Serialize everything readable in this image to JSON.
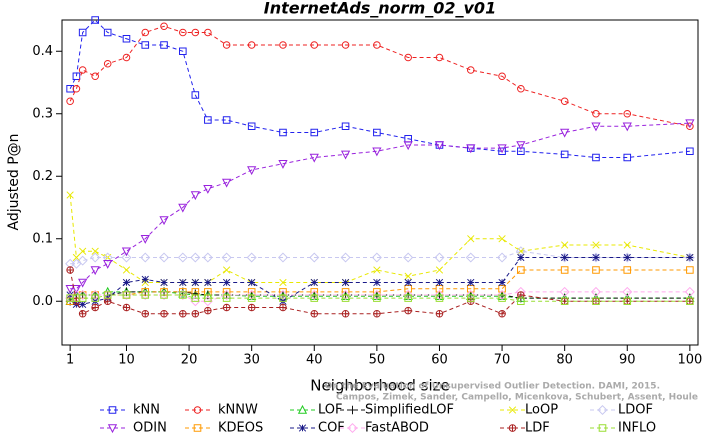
{
  "chart_data": {
    "type": "line",
    "title": "InternetAds_norm_02_v01",
    "x_label": "Neighborhood size",
    "y_label": "Adjusted P@n",
    "credit": [
      "Campos, Zimek, Sander, Campello, Micenkova, Schubert, Assent, Houle",
      "On the Evaluation of Unsupervised Outlier Detection. DAMI, 2015."
    ],
    "xlim": [
      -0.3,
      101.3
    ],
    "ylim": [
      -0.07,
      0.45
    ],
    "xticks": [
      1,
      10,
      20,
      30,
      40,
      50,
      60,
      70,
      80,
      90,
      100
    ],
    "yticks": [
      {
        "value": 0,
        "label": "0.0"
      },
      0.1,
      0.2,
      0.3,
      0.4
    ],
    "x": [
      1,
      2,
      3,
      5,
      7,
      10,
      13,
      16,
      19,
      21,
      23,
      26,
      30,
      35,
      40,
      45,
      50,
      55,
      60,
      65,
      70,
      73,
      80,
      85,
      90,
      100
    ],
    "series": [
      {
        "name": "kNN",
        "color": "#2222ee",
        "marker": "square",
        "values": [
          0.34,
          0.36,
          0.43,
          0.45,
          0.43,
          0.42,
          0.41,
          0.41,
          0.4,
          0.33,
          0.29,
          0.29,
          0.28,
          0.27,
          0.27,
          0.28,
          0.27,
          0.26,
          0.25,
          0.245,
          0.24,
          0.24,
          0.235,
          0.23,
          0.23,
          0.24
        ]
      },
      {
        "name": "kNNW",
        "color": "#ee2222",
        "marker": "circle",
        "values": [
          0.32,
          0.34,
          0.37,
          0.36,
          0.38,
          0.39,
          0.43,
          0.44,
          0.43,
          0.43,
          0.43,
          0.41,
          0.41,
          0.41,
          0.41,
          0.41,
          0.41,
          0.39,
          0.39,
          0.37,
          0.36,
          0.34,
          0.32,
          0.3,
          0.3,
          0.28
        ]
      },
      {
        "name": "LOF",
        "color": "#22cc22",
        "marker": "triangle",
        "values": [
          0.0,
          0.01,
          0.01,
          0.01,
          0.015,
          0.015,
          0.015,
          0.015,
          0.012,
          0.01,
          0.01,
          0.01,
          0.008,
          0.008,
          0.008,
          0.008,
          0.008,
          0.008,
          0.008,
          0.008,
          0.008,
          0.005,
          0.005,
          0.005,
          0.005,
          0.005
        ]
      },
      {
        "name": "SimplifiedLOF",
        "color": "#111111",
        "marker": "plus",
        "values": [
          0.0,
          0.005,
          0.01,
          0.01,
          0.01,
          0.015,
          0.015,
          0.015,
          0.015,
          0.012,
          0.01,
          0.01,
          0.01,
          0.01,
          0.01,
          0.01,
          0.01,
          0.01,
          0.01,
          0.01,
          0.01,
          0.005,
          0.005,
          0.005,
          0.005,
          0.005
        ]
      },
      {
        "name": "LoOP",
        "color": "#e8e800",
        "marker": "x",
        "values": [
          0.17,
          0.07,
          0.08,
          0.08,
          0.07,
          0.05,
          0.03,
          0.03,
          0.03,
          0.03,
          0.03,
          0.05,
          0.03,
          0.03,
          0.03,
          0.03,
          0.05,
          0.04,
          0.05,
          0.1,
          0.1,
          0.08,
          0.09,
          0.09,
          0.09,
          0.07
        ]
      },
      {
        "name": "LDOF",
        "color": "#c8c8f0",
        "marker": "diamond",
        "values": [
          0.06,
          0.06,
          0.065,
          0.07,
          0.07,
          0.07,
          0.07,
          0.07,
          0.07,
          0.07,
          0.07,
          0.07,
          0.07,
          0.07,
          0.07,
          0.07,
          0.07,
          0.07,
          0.07,
          0.07,
          0.07,
          0.08,
          0.07,
          0.07,
          0.07,
          0.07
        ]
      },
      {
        "name": "ODIN",
        "color": "#9922dd",
        "marker": "triangle-down",
        "values": [
          0.02,
          0.02,
          0.03,
          0.05,
          0.06,
          0.08,
          0.1,
          0.13,
          0.15,
          0.17,
          0.18,
          0.19,
          0.21,
          0.22,
          0.23,
          0.235,
          0.24,
          0.25,
          0.25,
          0.245,
          0.245,
          0.25,
          0.27,
          0.28,
          0.28,
          0.285
        ]
      },
      {
        "name": "KDEOS",
        "color": "#ff9900",
        "marker": "square",
        "values": [
          0.0,
          0.005,
          0.01,
          0.01,
          0.01,
          0.01,
          0.015,
          0.015,
          0.015,
          0.015,
          0.015,
          0.015,
          0.015,
          0.015,
          0.015,
          0.015,
          0.015,
          0.02,
          0.02,
          0.02,
          0.02,
          0.05,
          0.05,
          0.05,
          0.05,
          0.05
        ]
      },
      {
        "name": "COF",
        "color": "#1a1a88",
        "marker": "star",
        "values": [
          0.01,
          -0.005,
          -0.005,
          0.0,
          0.005,
          0.03,
          0.035,
          0.03,
          0.03,
          0.03,
          0.03,
          0.03,
          0.03,
          0.0,
          0.03,
          0.03,
          0.03,
          0.03,
          0.03,
          0.03,
          0.03,
          0.07,
          0.07,
          0.07,
          0.07,
          0.07
        ]
      },
      {
        "name": "FastABOD",
        "color": "#ffaaee",
        "marker": "diamond",
        "values": [
          0.005,
          0.01,
          0.01,
          0.01,
          0.01,
          0.01,
          0.01,
          0.01,
          0.01,
          0.0,
          0.0,
          0.01,
          0.01,
          0.01,
          0.01,
          0.01,
          0.01,
          0.01,
          0.01,
          0.01,
          0.01,
          0.015,
          0.015,
          0.015,
          0.015,
          0.015
        ]
      },
      {
        "name": "LDF",
        "color": "#aa2222",
        "marker": "circle-plus",
        "values": [
          0.05,
          0.0,
          -0.02,
          -0.01,
          0.0,
          -0.01,
          -0.02,
          -0.02,
          -0.02,
          -0.02,
          -0.015,
          -0.01,
          -0.01,
          -0.01,
          -0.02,
          -0.02,
          -0.02,
          -0.015,
          -0.02,
          0.0,
          -0.02,
          0.01,
          0.0,
          0.0,
          0.0,
          0.0
        ]
      },
      {
        "name": "INFLO",
        "color": "#99dd33",
        "marker": "square",
        "values": [
          0.005,
          0.005,
          0.005,
          0.005,
          0.01,
          0.01,
          0.01,
          0.01,
          0.01,
          0.005,
          0.005,
          0.005,
          0.005,
          0.005,
          0.005,
          0.005,
          0.005,
          0.005,
          0.005,
          0.005,
          0.005,
          0.0,
          0.0,
          0.0,
          0.0,
          0.0
        ]
      }
    ]
  }
}
